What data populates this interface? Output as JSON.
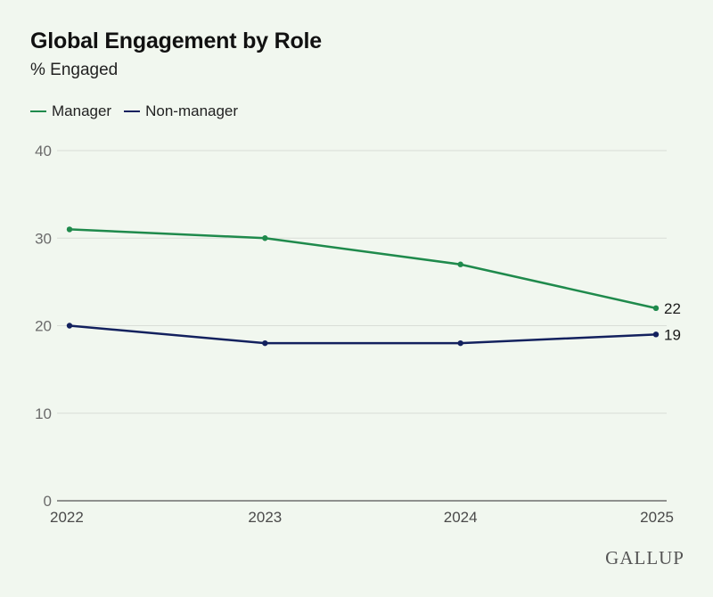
{
  "chart_data": {
    "type": "line",
    "title": "Global Engagement by Role",
    "subtitle": "% Engaged",
    "x": [
      "2022",
      "2023",
      "2024",
      "2025"
    ],
    "ylim": [
      0,
      40
    ],
    "yticks": [
      0,
      10,
      20,
      30,
      40
    ],
    "grid": true,
    "legend_position": "top-left",
    "series": [
      {
        "name": "Manager",
        "color": "#1f8a4c",
        "values": [
          31,
          30,
          27,
          22
        ],
        "end_label": "22"
      },
      {
        "name": "Non-manager",
        "color": "#13215e",
        "values": [
          20,
          18,
          18,
          19
        ],
        "end_label": "19"
      }
    ]
  },
  "brand": {
    "logo_text": "GALLUP"
  }
}
